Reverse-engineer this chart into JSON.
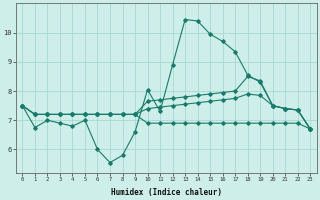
{
  "xlabel": "Humidex (Indice chaleur)",
  "x": [
    0,
    1,
    2,
    3,
    4,
    5,
    6,
    7,
    8,
    9,
    10,
    11,
    12,
    13,
    14,
    15,
    16,
    17,
    18,
    19,
    20,
    21,
    22,
    23
  ],
  "line1": [
    7.5,
    6.75,
    7.0,
    6.9,
    6.8,
    7.0,
    6.0,
    5.55,
    5.8,
    6.6,
    8.05,
    7.3,
    8.9,
    10.45,
    10.4,
    9.95,
    9.7,
    9.35,
    8.55,
    8.3,
    7.5,
    7.4,
    7.35,
    6.7
  ],
  "line2": [
    7.5,
    7.2,
    7.2,
    7.2,
    7.2,
    7.2,
    7.2,
    7.2,
    7.2,
    7.2,
    7.65,
    7.7,
    7.75,
    7.8,
    7.85,
    7.9,
    7.95,
    8.0,
    8.5,
    8.35,
    7.5,
    7.4,
    7.35,
    6.7
  ],
  "line3": [
    7.5,
    7.2,
    7.2,
    7.2,
    7.2,
    7.2,
    7.2,
    7.2,
    7.2,
    7.2,
    7.4,
    7.45,
    7.5,
    7.55,
    7.6,
    7.65,
    7.7,
    7.75,
    7.9,
    7.85,
    7.5,
    7.4,
    7.35,
    6.7
  ],
  "line4": [
    7.5,
    7.2,
    7.2,
    7.2,
    7.2,
    7.2,
    7.2,
    7.2,
    7.2,
    7.2,
    6.9,
    6.9,
    6.9,
    6.9,
    6.9,
    6.9,
    6.9,
    6.9,
    6.9,
    6.9,
    6.9,
    6.9,
    6.9,
    6.7
  ],
  "line_color": "#1a7a6a",
  "bg_color": "#cdeee9",
  "grid_color": "#aad8d0",
  "ylim": [
    5.2,
    11.0
  ],
  "xlim": [
    -0.5,
    23.5
  ],
  "yticks": [
    6,
    7,
    8,
    9,
    10
  ],
  "xticks": [
    0,
    1,
    2,
    3,
    4,
    5,
    6,
    7,
    8,
    9,
    10,
    11,
    12,
    13,
    14,
    15,
    16,
    17,
    18,
    19,
    20,
    21,
    22,
    23
  ]
}
